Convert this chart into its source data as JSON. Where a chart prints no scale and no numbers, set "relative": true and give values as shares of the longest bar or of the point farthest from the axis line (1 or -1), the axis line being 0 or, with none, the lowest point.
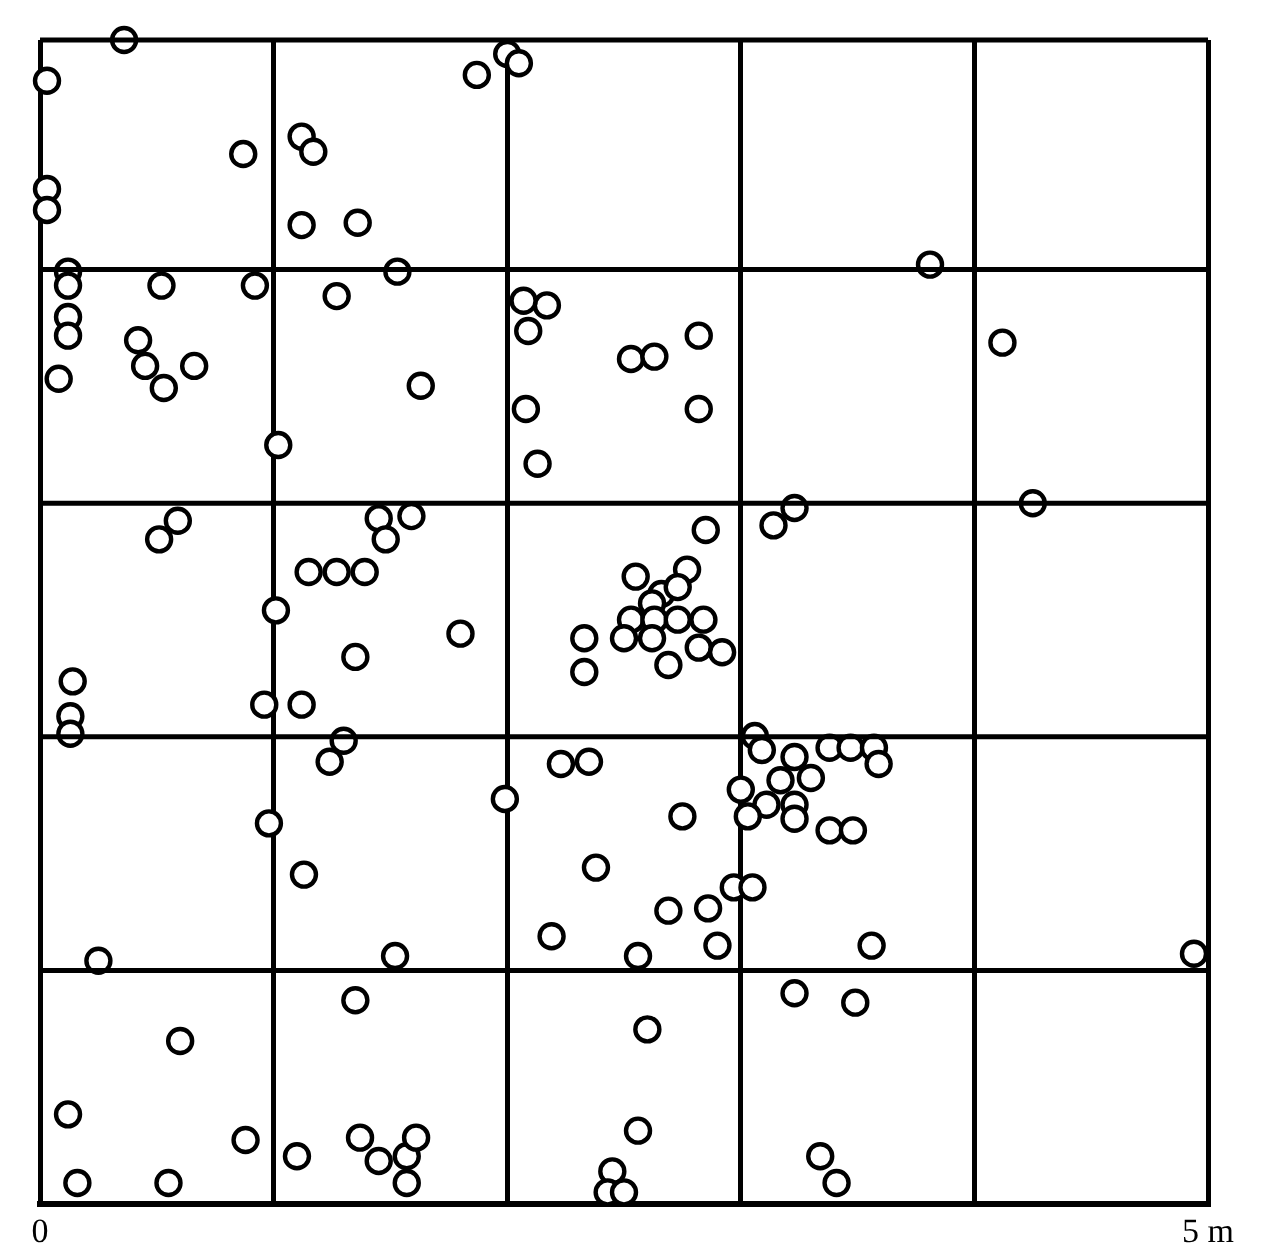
{
  "chart_data": {
    "type": "scatter",
    "relative": true,
    "x": [
      0.36,
      0.03,
      1.87,
      2.0,
      2.05,
      0.87,
      1.12,
      1.17,
      0.03,
      0.03,
      1.12,
      1.36,
      0.12,
      0.12,
      0.12,
      0.12,
      0.08,
      0.52,
      0.92,
      1.27,
      1.53,
      0.42,
      0.45,
      0.53,
      0.66,
      1.63,
      1.02,
      2.09,
      2.17,
      2.07,
      2.08,
      2.13,
      2.53,
      2.63,
      2.82,
      2.82,
      3.81,
      4.12,
      4.25,
      3.14,
      3.23,
      0.51,
      0.59,
      1.45,
      1.48,
      1.59,
      1.15,
      1.27,
      1.39,
      1.01,
      1.35,
      1.8,
      0.14,
      0.13,
      0.13,
      0.96,
      1.12,
      1.3,
      1.24,
      2.33,
      2.33,
      2.55,
      2.66,
      2.77,
      2.85,
      2.73,
      2.62,
      2.53,
      2.63,
      2.73,
      2.84,
      2.62,
      2.5,
      2.69,
      2.82,
      2.92,
      0.98,
      1.13,
      1.99,
      2.23,
      2.35,
      2.38,
      2.75,
      2.69,
      2.86,
      2.9,
      2.97,
      3.05,
      3.06,
      3.09,
      3.11,
      3.0,
      3.03,
      3.17,
      3.23,
      3.3,
      3.38,
      3.47,
      3.57,
      3.59,
      3.23,
      3.23,
      3.38,
      3.48,
      2.19,
      2.56,
      3.56,
      1.52,
      0.25,
      4.94,
      0.6,
      1.35,
      2.6,
      2.56,
      3.23,
      3.49,
      0.12,
      0.16,
      0.55,
      0.88,
      1.1,
      1.37,
      1.45,
      1.57,
      1.61,
      1.57,
      2.45,
      2.43,
      2.5,
      3.34,
      3.41
    ],
    "values": [
      1.0,
      0.965,
      0.97,
      0.988,
      0.98,
      0.902,
      0.917,
      0.904,
      0.872,
      0.854,
      0.841,
      0.843,
      0.801,
      0.789,
      0.762,
      0.746,
      0.709,
      0.789,
      0.789,
      0.78,
      0.801,
      0.742,
      0.72,
      0.701,
      0.72,
      0.703,
      0.652,
      0.75,
      0.772,
      0.776,
      0.683,
      0.636,
      0.726,
      0.728,
      0.746,
      0.683,
      0.807,
      0.74,
      0.602,
      0.583,
      0.598,
      0.571,
      0.587,
      0.589,
      0.571,
      0.591,
      0.543,
      0.543,
      0.543,
      0.51,
      0.47,
      0.49,
      0.449,
      0.419,
      0.404,
      0.429,
      0.429,
      0.398,
      0.38,
      0.486,
      0.457,
      0.539,
      0.524,
      0.545,
      0.579,
      0.53,
      0.516,
      0.502,
      0.502,
      0.502,
      0.502,
      0.486,
      0.486,
      0.463,
      0.478,
      0.474,
      0.327,
      0.283,
      0.348,
      0.378,
      0.38,
      0.289,
      0.333,
      0.252,
      0.254,
      0.222,
      0.272,
      0.272,
      0.402,
      0.39,
      0.343,
      0.356,
      0.333,
      0.364,
      0.384,
      0.366,
      0.392,
      0.392,
      0.392,
      0.378,
      0.343,
      0.331,
      0.321,
      0.321,
      0.23,
      0.213,
      0.222,
      0.213,
      0.209,
      0.215,
      0.14,
      0.175,
      0.15,
      0.063,
      0.181,
      0.173,
      0.077,
      0.018,
      0.018,
      0.055,
      0.041,
      0.057,
      0.037,
      0.041,
      0.057,
      0.018,
      0.028,
      0.01,
      0.01,
      0.041,
      0.018
    ],
    "color": "#000000",
    "marker": "circle",
    "xlim": [
      0,
      5
    ],
    "xticks": [
      0,
      {
        "value": 1,
        "label": null
      },
      {
        "value": 2,
        "label": null
      },
      {
        "value": 3,
        "label": null
      },
      {
        "value": 4,
        "label": null
      },
      {
        "value": 5,
        "label": "5 m"
      }
    ],
    "tick_labels": "x",
    "grid": true
  }
}
